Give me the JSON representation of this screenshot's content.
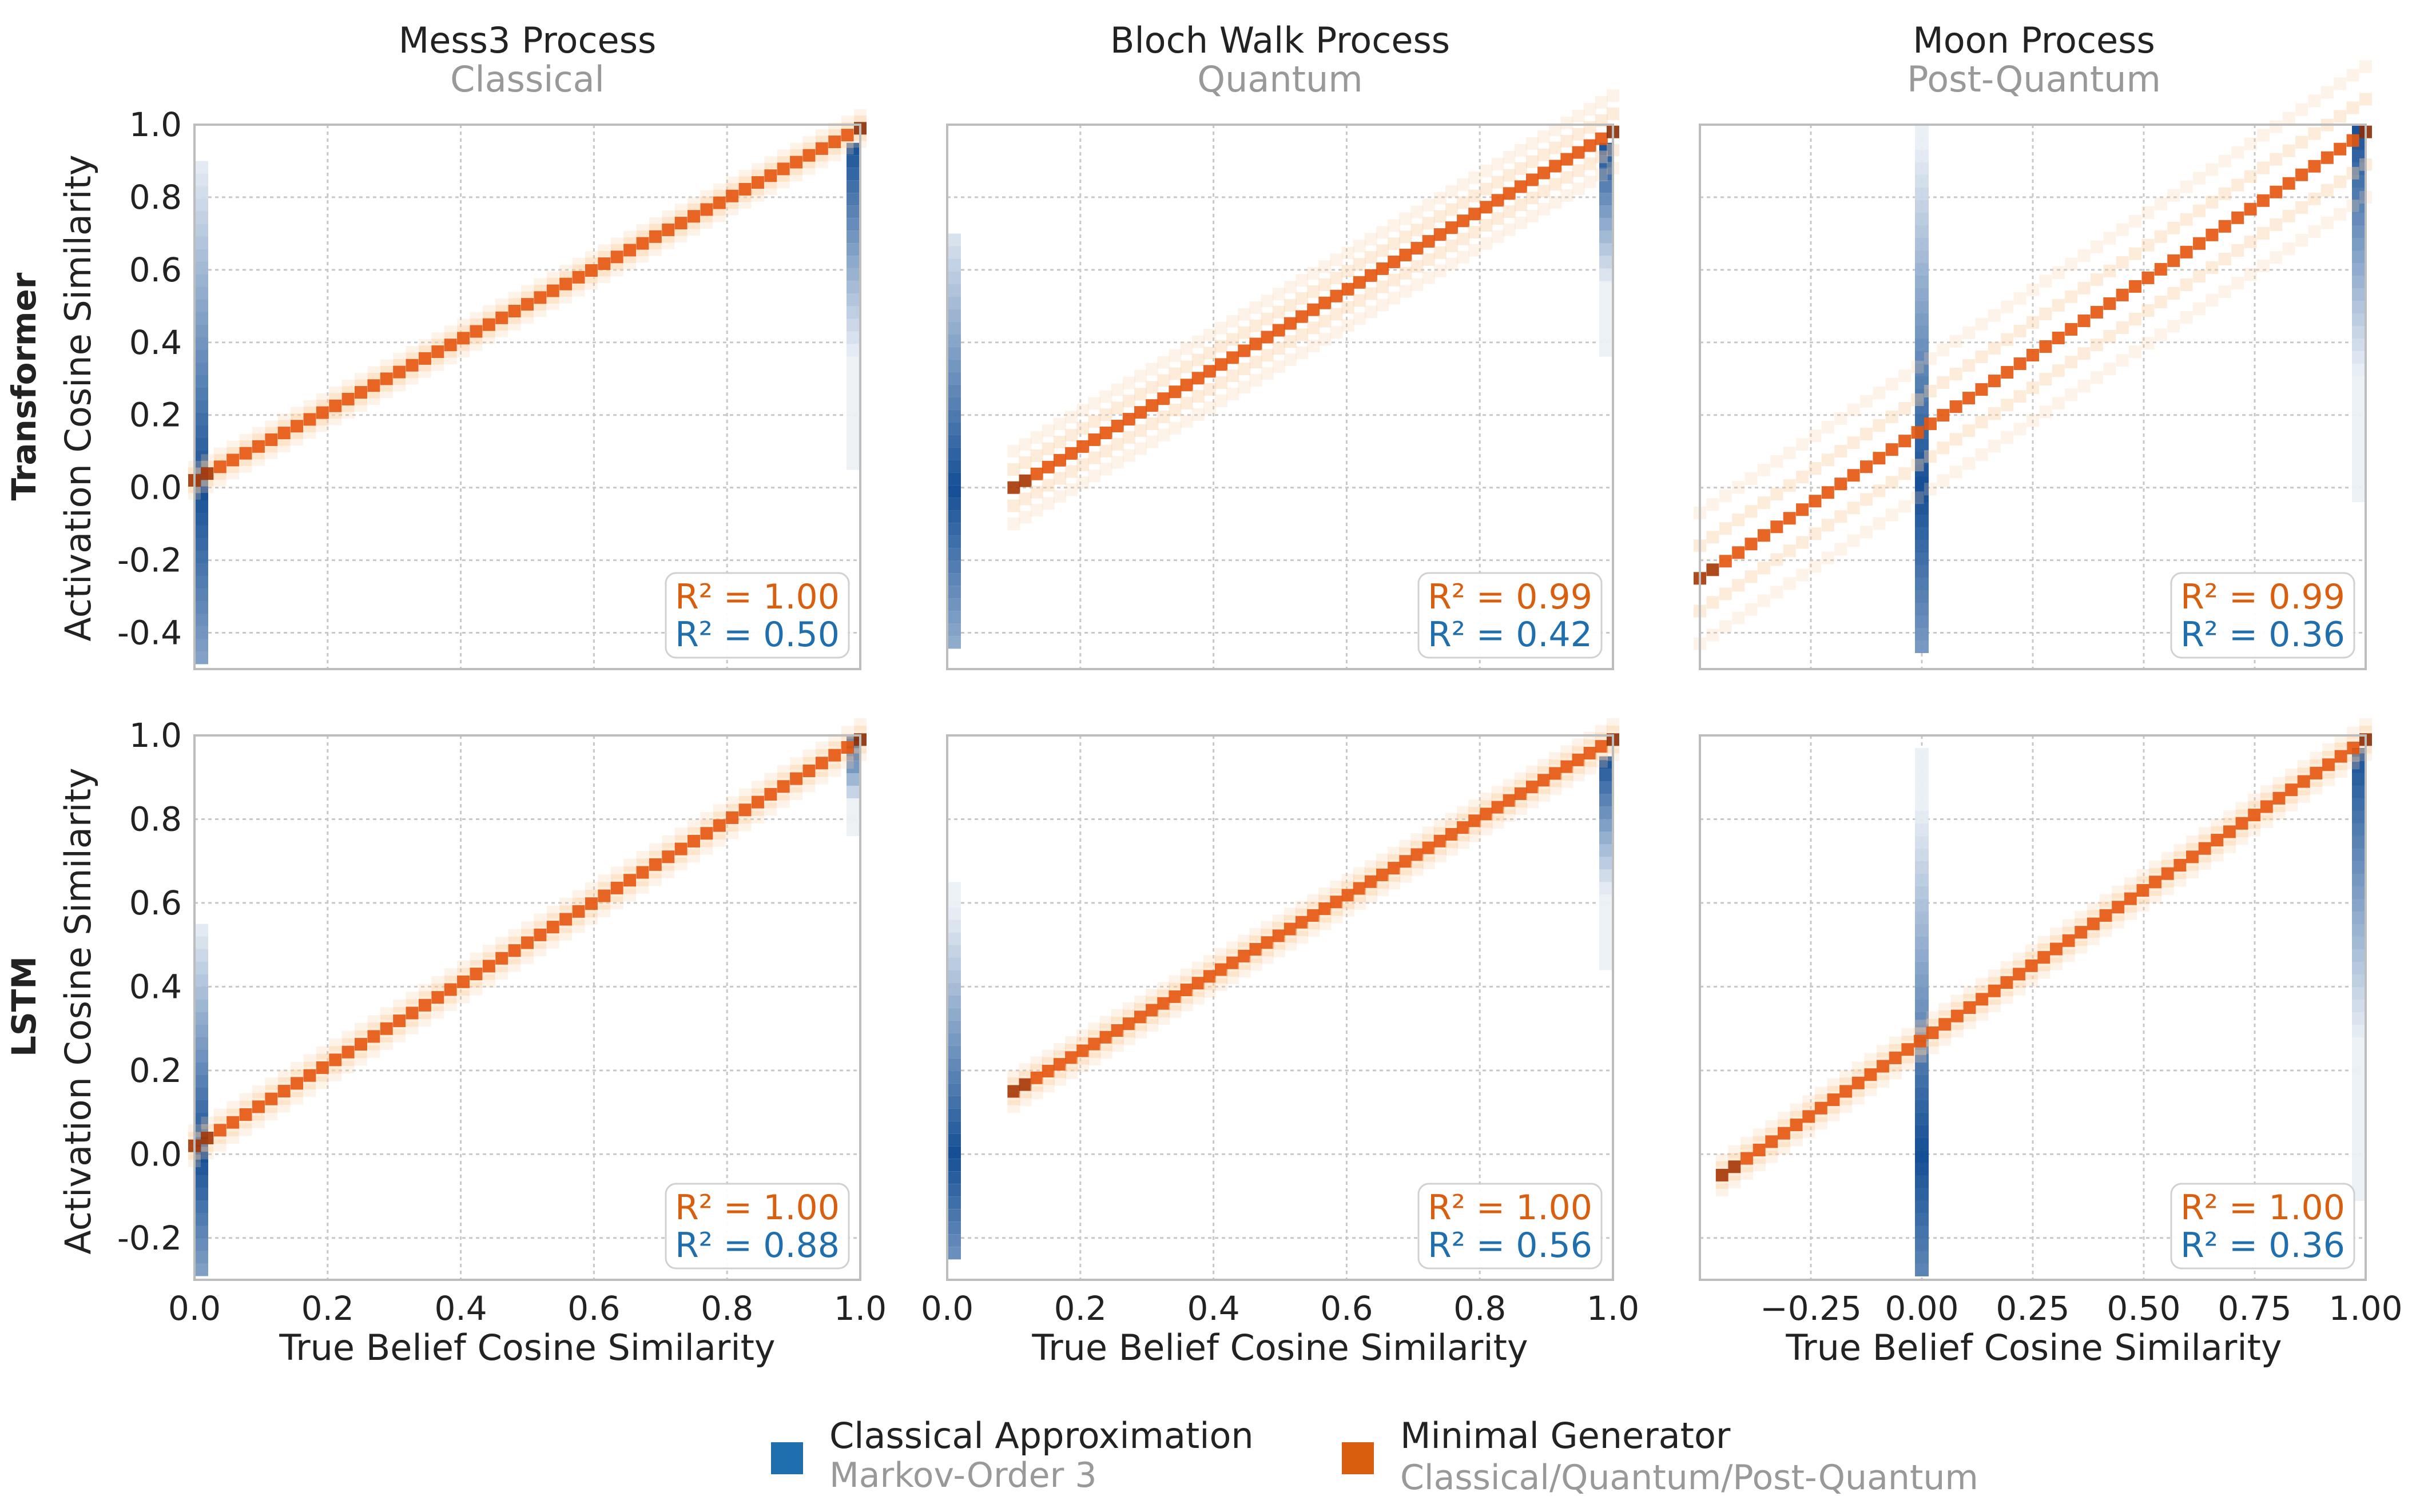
{
  "colors": {
    "classical": "#1f6fae",
    "minimal": "#d95f0e",
    "grid": "#c8c8c8",
    "frame": "#bdbdbd",
    "subtitle": "#999999"
  },
  "row_labels": [
    "Transformer",
    "LSTM"
  ],
  "columns": [
    {
      "title": "Mess3 Process",
      "subtitle": "Classical"
    },
    {
      "title": "Bloch Walk Process",
      "subtitle": "Quantum"
    },
    {
      "title": "Moon Process",
      "subtitle": "Post-Quantum"
    }
  ],
  "xlabel": "True Belief Cosine Similarity",
  "ylabel": "Activation Cosine Similarity",
  "legend": [
    {
      "label": "Classical Approximation",
      "sublabel": "Markov-Order 3",
      "color": "#1f6fae"
    },
    {
      "label": "Minimal Generator",
      "sublabel": "Classical/Quantum/Post-Quantum",
      "color": "#d95f0e"
    }
  ],
  "chart_data": [
    {
      "type": "heatmap",
      "row": "Transformer",
      "process": "Mess3 Process",
      "xlim": [
        0,
        1
      ],
      "ylim": [
        -0.5,
        1.0
      ],
      "yticks": [
        "1.0",
        "0.8",
        "0.6",
        "0.4",
        "0.2",
        "0.0",
        "-0.2",
        "-0.4"
      ],
      "xticks": [],
      "minimal_generator": {
        "x": [
          0,
          1
        ],
        "y": [
          0.02,
          0.99
        ],
        "r2_label": "R² = 1.00"
      },
      "classical_approximation": {
        "x": [
          0.0,
          1.0
        ],
        "y": [
          [
            -0.5,
            0.9
          ],
          [
            0.05,
            0.95
          ]
        ],
        "r2_label": "R² = 0.50"
      }
    },
    {
      "type": "heatmap",
      "row": "Transformer",
      "process": "Bloch Walk Process",
      "xlim": [
        0,
        1
      ],
      "ylim": [
        -0.5,
        1.0
      ],
      "yticks": [],
      "xticks": [],
      "minimal_generator": {
        "x": [
          0.1,
          1
        ],
        "y": [
          0.0,
          0.98
        ],
        "r2_label": "R² = 0.99"
      },
      "classical_approximation": {
        "x": [
          0.0,
          1.0
        ],
        "y": [
          [
            -0.45,
            0.7
          ],
          [
            0.35,
            0.95
          ]
        ],
        "r2_label": "R² = 0.42"
      }
    },
    {
      "type": "heatmap",
      "row": "Transformer",
      "process": "Moon Process",
      "xlim": [
        -0.5,
        1.0
      ],
      "ylim": [
        -0.5,
        1.0
      ],
      "yticks": [],
      "xticks": [],
      "minimal_generator": {
        "x": [
          -0.5,
          1.0
        ],
        "y": [
          -0.25,
          0.98
        ],
        "r2_label": "R² = 0.99"
      },
      "classical_approximation": {
        "x": [
          0.0,
          1.0
        ],
        "y": [
          [
            -0.45,
            1.0
          ],
          [
            -0.05,
            1.0
          ]
        ],
        "r2_label": "R² = 0.36"
      }
    },
    {
      "type": "heatmap",
      "row": "LSTM",
      "process": "Mess3 Process",
      "xlim": [
        0,
        1
      ],
      "ylim": [
        -0.3,
        1.0
      ],
      "yticks": [
        "1.0",
        "0.8",
        "0.6",
        "0.4",
        "0.2",
        "0.0",
        "-0.2"
      ],
      "xticks": [
        "0.0",
        "0.2",
        "0.4",
        "0.6",
        "0.8",
        "1.0"
      ],
      "minimal_generator": {
        "x": [
          0,
          1
        ],
        "y": [
          0.02,
          0.99
        ],
        "r2_label": "R² = 1.00"
      },
      "classical_approximation": {
        "x": [
          0.0,
          1.0
        ],
        "y": [
          [
            -0.3,
            0.55
          ],
          [
            0.75,
            1.0
          ]
        ],
        "r2_label": "R² = 0.88"
      }
    },
    {
      "type": "heatmap",
      "row": "LSTM",
      "process": "Bloch Walk Process",
      "xlim": [
        0,
        1
      ],
      "ylim": [
        -0.3,
        1.0
      ],
      "yticks": [],
      "xticks": [
        "0.0",
        "0.2",
        "0.4",
        "0.6",
        "0.8",
        "1.0"
      ],
      "minimal_generator": {
        "x": [
          0.1,
          1
        ],
        "y": [
          0.15,
          0.99
        ],
        "r2_label": "R² = 1.00"
      },
      "classical_approximation": {
        "x": [
          0.0,
          1.0
        ],
        "y": [
          [
            -0.25,
            0.65
          ],
          [
            0.45,
            0.95
          ]
        ],
        "r2_label": "R² = 0.56"
      }
    },
    {
      "type": "heatmap",
      "row": "LSTM",
      "process": "Moon Process",
      "xlim": [
        -0.5,
        1.0
      ],
      "ylim": [
        -0.3,
        1.0
      ],
      "yticks": [],
      "xticks": [
        "−0.25",
        "0.00",
        "0.25",
        "0.50",
        "0.75",
        "1.00"
      ],
      "minimal_generator": {
        "x": [
          -0.45,
          1.0
        ],
        "y": [
          -0.05,
          0.99
        ],
        "r2_label": "R² = 1.00"
      },
      "classical_approximation": {
        "x": [
          0.0,
          1.0
        ],
        "y": [
          [
            -0.3,
            0.97
          ],
          [
            -0.1,
            0.97
          ]
        ],
        "r2_label": "R² = 0.36"
      }
    }
  ]
}
